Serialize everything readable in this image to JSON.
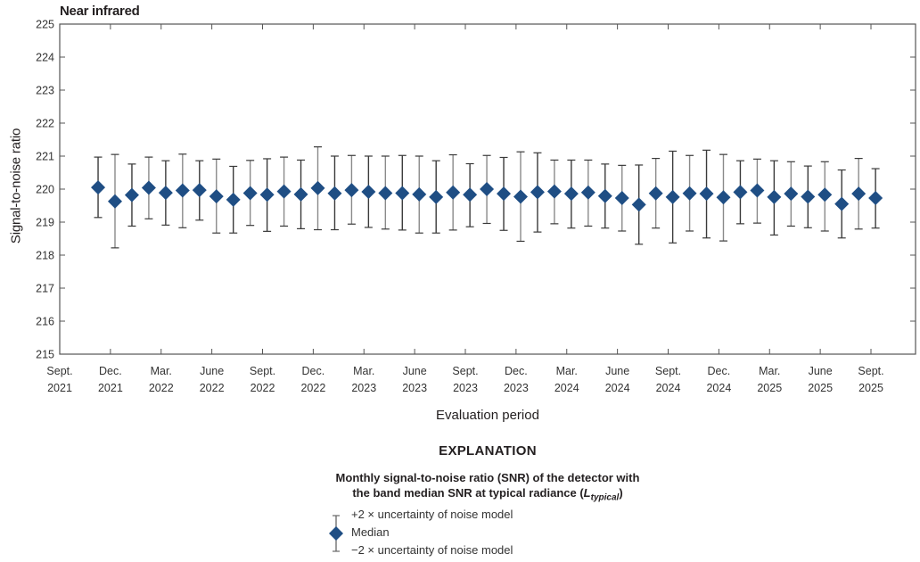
{
  "chart_data": {
    "type": "scatter",
    "subtype": "errorbar",
    "title": "Near infrared",
    "xlabel": "Evaluation period",
    "ylabel": "Signal-to-noise ratio",
    "ylim": [
      215,
      225
    ],
    "yticks": [
      215,
      216,
      217,
      218,
      219,
      220,
      221,
      222,
      223,
      224,
      225
    ],
    "xticks": [
      {
        "line1": "Sept.",
        "line2": "2021",
        "month_index": 0
      },
      {
        "line1": "Dec.",
        "line2": "2021",
        "month_index": 3
      },
      {
        "line1": "Mar.",
        "line2": "2022",
        "month_index": 6
      },
      {
        "line1": "June",
        "line2": "2022",
        "month_index": 9
      },
      {
        "line1": "Sept.",
        "line2": "2022",
        "month_index": 12
      },
      {
        "line1": "Dec.",
        "line2": "2022",
        "month_index": 15
      },
      {
        "line1": "Mar.",
        "line2": "2023",
        "month_index": 18
      },
      {
        "line1": "June",
        "line2": "2023",
        "month_index": 21
      },
      {
        "line1": "Sept.",
        "line2": "2023",
        "month_index": 24
      },
      {
        "line1": "Dec.",
        "line2": "2023",
        "month_index": 27
      },
      {
        "line1": "Mar.",
        "line2": "2024",
        "month_index": 30
      },
      {
        "line1": "June",
        "line2": "2024",
        "month_index": 33
      },
      {
        "line1": "Sept.",
        "line2": "2024",
        "month_index": 36
      },
      {
        "line1": "Dec.",
        "line2": "2024",
        "month_index": 39
      },
      {
        "line1": "Mar.",
        "line2": "2025",
        "month_index": 42
      },
      {
        "line1": "June",
        "line2": "2025",
        "month_index": 45
      },
      {
        "line1": "Sept.",
        "line2": "2025",
        "month_index": 48
      }
    ],
    "x_range_months": [
      0,
      50.6
    ],
    "grid": false,
    "marker_color": "#1f4e84",
    "series": [
      {
        "name": "Median",
        "x": [
          "Nov 2021",
          "Dec 2021",
          "Jan 2022",
          "Feb 2022",
          "Mar 2022",
          "Apr 2022",
          "May 2022",
          "Jun 2022",
          "Jul 2022",
          "Aug 2022",
          "Sep 2022",
          "Oct 2022",
          "Nov 2022",
          "Dec 2022",
          "Jan 2023",
          "Feb 2023",
          "Mar 2023",
          "Apr 2023",
          "May 2023",
          "Jun 2023",
          "Jul 2023",
          "Aug 2023",
          "Sep 2023",
          "Oct 2023",
          "Nov 2023",
          "Dec 2023",
          "Jan 2024",
          "Feb 2024",
          "Mar 2024",
          "Apr 2024",
          "May 2024",
          "Jun 2024",
          "Jul 2024",
          "Aug 2024",
          "Sep 2024",
          "Oct 2024",
          "Nov 2024",
          "Dec 2024",
          "Jan 2025",
          "Feb 2025",
          "Mar 2025",
          "Apr 2025",
          "May 2025",
          "Jun 2025",
          "Jul 2025",
          "Aug 2025",
          "Sep 2025"
        ],
        "y": [
          220.05,
          219.63,
          219.82,
          220.04,
          219.89,
          219.96,
          219.97,
          219.78,
          219.68,
          219.88,
          219.83,
          219.93,
          219.84,
          220.03,
          219.87,
          219.97,
          219.92,
          219.88,
          219.88,
          219.84,
          219.76,
          219.9,
          219.83,
          220.0,
          219.86,
          219.77,
          219.91,
          219.93,
          219.86,
          219.9,
          219.79,
          219.73,
          219.53,
          219.87,
          219.76,
          219.87,
          219.86,
          219.75,
          219.91,
          219.96,
          219.76,
          219.86,
          219.77,
          219.83,
          219.55,
          219.86,
          219.73
        ],
        "upper": [
          220.97,
          221.05,
          220.76,
          220.97,
          220.86,
          221.06,
          220.86,
          220.91,
          220.69,
          220.87,
          220.92,
          220.97,
          220.88,
          221.28,
          221.0,
          221.02,
          221.0,
          221.0,
          221.02,
          221.0,
          220.86,
          221.04,
          220.77,
          221.02,
          220.96,
          221.13,
          221.1,
          220.88,
          220.88,
          220.88,
          220.76,
          220.72,
          220.73,
          220.93,
          221.15,
          221.02,
          221.18,
          221.05,
          220.86,
          220.91,
          220.86,
          220.83,
          220.7,
          220.83,
          220.58,
          220.93,
          220.62
        ],
        "lower": [
          219.14,
          218.22,
          218.88,
          219.1,
          218.91,
          218.83,
          219.06,
          218.67,
          218.67,
          218.9,
          218.72,
          218.88,
          218.8,
          218.77,
          218.77,
          218.94,
          218.84,
          218.79,
          218.76,
          218.67,
          218.67,
          218.76,
          218.86,
          218.96,
          218.75,
          218.42,
          218.7,
          218.95,
          218.82,
          218.88,
          218.82,
          218.73,
          218.33,
          218.82,
          218.37,
          218.73,
          218.52,
          218.43,
          218.95,
          218.97,
          218.61,
          218.88,
          218.83,
          218.73,
          218.52,
          218.79,
          218.82
        ]
      }
    ],
    "legend": {
      "heading": "EXPLANATION",
      "description_line1": "Monthly signal-to-noise ratio (SNR) of the detector with",
      "description_line2_prefix": "the band median SNR at typical radiance (",
      "description_symbol": "L",
      "description_subscript": "typical",
      "description_line2_suffix": ")",
      "items": [
        {
          "label": "+2 × uncertainty of noise model",
          "symbol": "upper-whisker"
        },
        {
          "label": "Median",
          "symbol": "diamond"
        },
        {
          "label": "−2 × uncertainty of noise model",
          "symbol": "lower-whisker"
        }
      ],
      "position": "bottom-center"
    }
  }
}
